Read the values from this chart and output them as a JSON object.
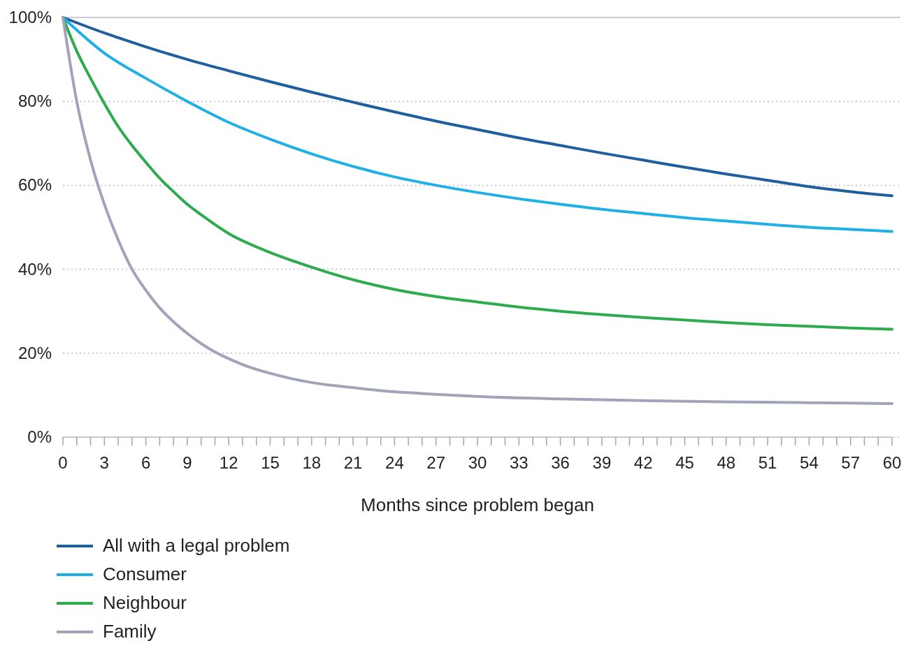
{
  "chart_data": {
    "type": "line",
    "xlabel": "Months since problem began",
    "xlim": [
      0,
      60
    ],
    "xticks": [
      0,
      {
        "value": 1,
        "label": null
      },
      {
        "value": 2,
        "label": null
      },
      3,
      {
        "value": 4,
        "label": null
      },
      {
        "value": 5,
        "label": null
      },
      6,
      {
        "value": 7,
        "label": null
      },
      {
        "value": 8,
        "label": null
      },
      9,
      {
        "value": 10,
        "label": null
      },
      {
        "value": 11,
        "label": null
      },
      12,
      {
        "value": 13,
        "label": null
      },
      {
        "value": 14,
        "label": null
      },
      15,
      {
        "value": 16,
        "label": null
      },
      {
        "value": 17,
        "label": null
      },
      18,
      {
        "value": 19,
        "label": null
      },
      {
        "value": 20,
        "label": null
      },
      21,
      {
        "value": 22,
        "label": null
      },
      {
        "value": 23,
        "label": null
      },
      24,
      {
        "value": 25,
        "label": null
      },
      {
        "value": 26,
        "label": null
      },
      27,
      {
        "value": 28,
        "label": null
      },
      {
        "value": 29,
        "label": null
      },
      30,
      {
        "value": 31,
        "label": null
      },
      {
        "value": 32,
        "label": null
      },
      33,
      {
        "value": 34,
        "label": null
      },
      {
        "value": 35,
        "label": null
      },
      36,
      {
        "value": 37,
        "label": null
      },
      {
        "value": 38,
        "label": null
      },
      39,
      {
        "value": 40,
        "label": null
      },
      {
        "value": 41,
        "label": null
      },
      42,
      {
        "value": 43,
        "label": null
      },
      {
        "value": 44,
        "label": null
      },
      45,
      {
        "value": 46,
        "label": null
      },
      {
        "value": 47,
        "label": null
      },
      48,
      {
        "value": 49,
        "label": null
      },
      {
        "value": 50,
        "label": null
      },
      51,
      {
        "value": 52,
        "label": null
      },
      {
        "value": 53,
        "label": null
      },
      54,
      {
        "value": 55,
        "label": null
      },
      {
        "value": 56,
        "label": null
      },
      57,
      {
        "value": 58,
        "label": null
      },
      {
        "value": 59,
        "label": null
      },
      60
    ],
    "ylim": [
      0,
      100
    ],
    "yticks": [
      {
        "value": 0,
        "label": "0%"
      },
      {
        "value": 20,
        "label": "20%"
      },
      {
        "value": 40,
        "label": "40%"
      },
      {
        "value": 60,
        "label": "60%"
      },
      {
        "value": 80,
        "label": "80%"
      },
      {
        "value": 100,
        "label": "100%"
      }
    ],
    "grid": "y",
    "legend": "bottom",
    "marker": "none",
    "line_style": "solid",
    "series": [
      {
        "name": "All with a legal problem",
        "color": "#1f5f9e",
        "x": [
          0,
          3,
          6,
          9,
          12,
          15,
          18,
          21,
          24,
          27,
          30,
          33,
          36,
          39,
          42,
          45,
          48,
          51,
          54,
          57,
          60
        ],
        "values": [
          100,
          96.3,
          93,
          90,
          87.3,
          84.7,
          82.2,
          79.8,
          77.5,
          75.3,
          73.3,
          71.3,
          69.5,
          67.7,
          66,
          64.3,
          62.7,
          61.2,
          59.7,
          58.5,
          57.5
        ]
      },
      {
        "name": "Consumer",
        "color": "#1fb0e6",
        "x": [
          0,
          3,
          6,
          9,
          12,
          15,
          18,
          21,
          24,
          27,
          30,
          33,
          36,
          39,
          42,
          45,
          48,
          51,
          54,
          57,
          60
        ],
        "values": [
          100,
          91.5,
          85.5,
          80,
          75,
          71,
          67.5,
          64.5,
          62,
          60,
          58.3,
          56.8,
          55.5,
          54.3,
          53.3,
          52.3,
          51.5,
          50.7,
          50,
          49.5,
          49
        ]
      },
      {
        "name": "Neighbour",
        "color": "#2eab4e",
        "x": [
          0,
          1,
          2,
          3,
          4,
          5,
          6,
          7,
          8,
          9,
          10,
          12,
          15,
          18,
          21,
          24,
          27,
          30,
          33,
          36,
          39,
          42,
          45,
          48,
          51,
          54,
          57,
          60
        ],
        "values": [
          100,
          92,
          85.5,
          79.5,
          74,
          69.5,
          65.5,
          61.7,
          58.5,
          55.5,
          53,
          48.5,
          44,
          40.5,
          37.5,
          35.2,
          33.5,
          32.2,
          31,
          30,
          29.2,
          28.5,
          27.9,
          27.3,
          26.8,
          26.4,
          26,
          25.7
        ]
      },
      {
        "name": "Family",
        "color": "#a0a4b8",
        "x": [
          0,
          1,
          2,
          3,
          4,
          5,
          6,
          7,
          8,
          9,
          10,
          11,
          12,
          13,
          15,
          18,
          21,
          24,
          27,
          30,
          36,
          42,
          48,
          54,
          60
        ],
        "values": [
          100,
          80,
          66,
          55.5,
          47,
          40,
          35,
          30.8,
          27.5,
          24.7,
          22.3,
          20.3,
          18.7,
          17.3,
          15.2,
          13,
          11.8,
          10.8,
          10.2,
          9.7,
          9.1,
          8.7,
          8.4,
          8.2,
          8
        ]
      }
    ]
  }
}
